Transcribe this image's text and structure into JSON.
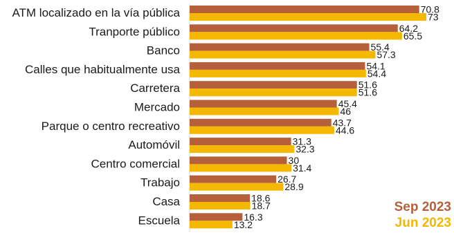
{
  "chart_data": {
    "type": "bar",
    "orientation": "horizontal",
    "title": "",
    "xlabel": "",
    "ylabel": "",
    "xlim": [
      0,
      73
    ],
    "grid": false,
    "legend_position": "bottom-right",
    "categories": [
      "ATM localizado en la vía pública",
      "Tranporte público",
      "Banco",
      "Calles que habitualmente usa",
      "Carretera",
      "Mercado",
      "Parque o centro recreativo",
      "Automóvil",
      "Centro comercial",
      "Trabajo",
      "Casa",
      "Escuela"
    ],
    "series": [
      {
        "name": "Sep 2023",
        "color": "#B5603A",
        "values": [
          70.8,
          64.2,
          55.4,
          54.1,
          51.6,
          45.4,
          43.7,
          31.3,
          30,
          26.7,
          18.6,
          16.3
        ],
        "labels": [
          "70.8",
          "64.2",
          "55.4",
          "54.1",
          "51.6",
          "45.4",
          "43.7",
          "31.3",
          "30",
          "26.7",
          "18.6",
          "16.3"
        ]
      },
      {
        "name": "Jun 2023",
        "color": "#F5B800",
        "values": [
          73,
          65.5,
          57.3,
          54.4,
          51.6,
          46,
          44.6,
          32.3,
          31.4,
          28.9,
          18.7,
          13.2
        ],
        "labels": [
          "73",
          "65.5",
          "57.3",
          "54.4",
          "51.6",
          "46",
          "44.6",
          "32.3",
          "31.4",
          "28.9",
          "18.7",
          "13.2"
        ]
      }
    ]
  }
}
